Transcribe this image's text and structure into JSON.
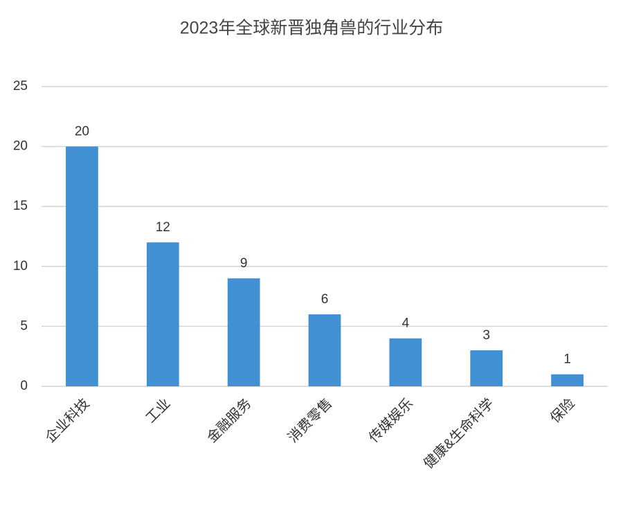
{
  "chart_data": {
    "type": "bar",
    "title": "2023年全球新晋独角兽的行业分布",
    "categories": [
      "企业科技",
      "工业",
      "金融服务",
      "消费零售",
      "传媒娱乐",
      "健康&生命科学",
      "保险"
    ],
    "values": [
      20,
      12,
      9,
      6,
      4,
      3,
      1
    ],
    "color": "#4190d4",
    "ylim": [
      0,
      25
    ],
    "yticks": [
      0,
      5,
      10,
      15,
      20,
      25
    ],
    "grid": true
  }
}
